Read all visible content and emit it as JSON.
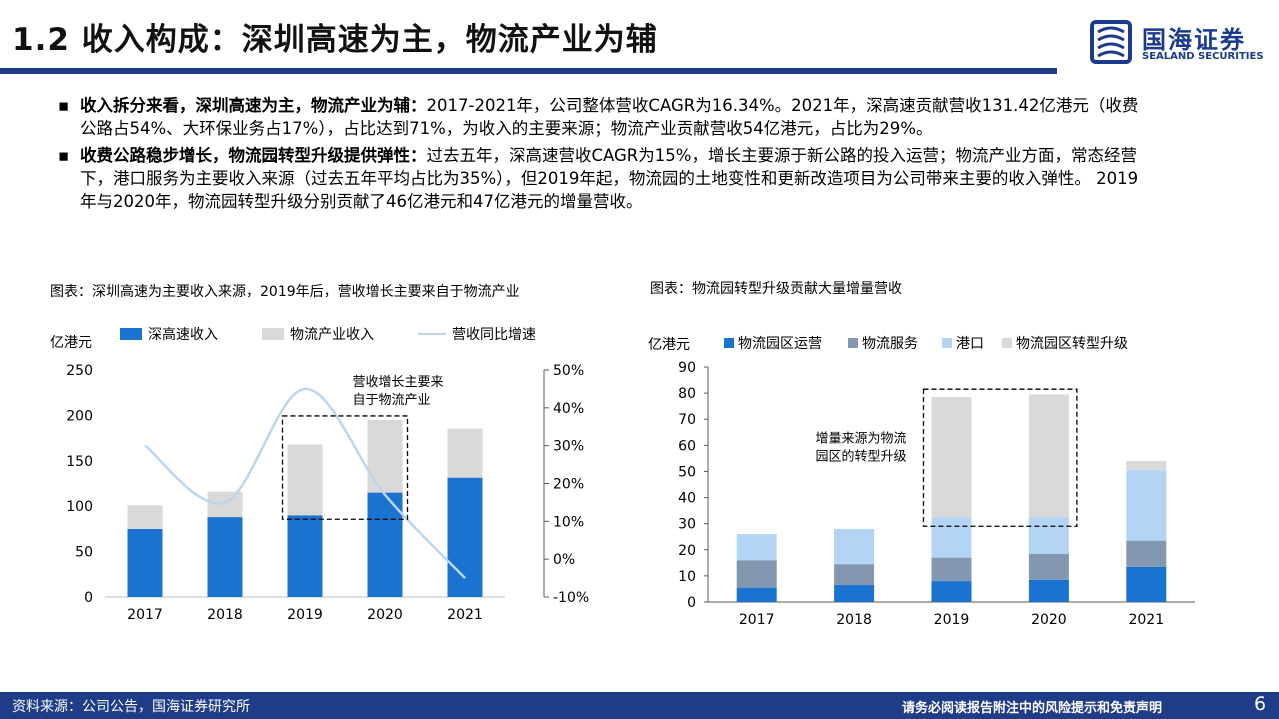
{
  "page": {
    "title": "1.2 收入构成：深圳高速为主，物流产业为辅",
    "logo_name": "国海证券",
    "logo_en": "SEALAND SECURITIES",
    "page_number": "6"
  },
  "bullets": [
    {
      "bold": "收入拆分来看，深圳高速为主，物流产业为辅：",
      "text": "2017-2021年，公司整体营收CAGR为16.34%。2021年，深高速贡献营收131.42亿港元（收费公路占54%、大环保业务占17%），占比达到71%，为收入的主要来源；物流产业贡献营收54亿港元，占比为29%。"
    },
    {
      "bold": "收费公路稳步增长，物流园转型升级提供弹性：",
      "text": "过去五年，深高速营收CAGR为15%，增长主要源于新公路的投入运营；物流产业方面，常态经营下，港口服务为主要收入来源（过去五年平均占比为35%），但2019年起，物流园的土地变性和更新改造项目为公司带来主要的收入弹性。 2019年与2020年，物流园转型升级分别贡献了46亿港元和47亿港元的增量营收。"
    }
  ],
  "footer": {
    "source": "资料来源：公司公告，国海证券研究所",
    "disclaimer": "请务必阅读报告附注中的风险提示和免责声明"
  },
  "colors": {
    "brand": "#1f3c88",
    "sz_expressway": "#1a73d1",
    "logistics": "#d9d9d9",
    "growth_line": "#bcd5ee",
    "park_ops": "#1a73d1",
    "logistics_service": "#8497b0",
    "port": "#b3d4f5",
    "park_transform": "#d9d9d9"
  },
  "chart_data": [
    {
      "type": "bar",
      "caption": "图表：深圳高速为主要收入来源，2019年后，营收增长主要来自于物流产业",
      "ylabel": "亿港元",
      "categories": [
        "2017",
        "2018",
        "2019",
        "2020",
        "2021"
      ],
      "ylim": [
        0,
        250
      ],
      "yticks": [
        "0",
        "50",
        "100",
        "150",
        "200",
        "250"
      ],
      "y2lim": [
        -10,
        50
      ],
      "y2ticks": [
        "-10%",
        "0%",
        "10%",
        "20%",
        "30%",
        "40%",
        "50%"
      ],
      "series": [
        {
          "name": "深高速收入",
          "kind": "bar",
          "values": [
            75,
            88,
            90,
            115,
            131.42
          ]
        },
        {
          "name": "物流产业收入",
          "kind": "bar",
          "values": [
            26,
            28,
            78,
            80,
            54
          ]
        },
        {
          "name": "营收同比增速",
          "kind": "line",
          "axis": "right",
          "values": [
            30,
            15,
            45,
            17,
            -5
          ]
        }
      ],
      "annotation": "营收增长主要来自于物流产业",
      "annotation_lines": [
        "营收增长主要来",
        "自于物流产业"
      ],
      "highlight_categories": [
        "2019",
        "2020"
      ],
      "legend_position": "top"
    },
    {
      "type": "bar",
      "caption": "图表：物流园转型升级贡献大量增量营收",
      "ylabel": "亿港元",
      "categories": [
        "2017",
        "2018",
        "2019",
        "2020",
        "2021"
      ],
      "ylim": [
        0,
        90
      ],
      "yticks": [
        "0",
        "10",
        "20",
        "30",
        "40",
        "50",
        "60",
        "70",
        "80",
        "90"
      ],
      "series": [
        {
          "name": "物流园区运营",
          "values": [
            5.5,
            6.5,
            8,
            8.5,
            13.5
          ]
        },
        {
          "name": "物流服务",
          "values": [
            10.5,
            8,
            9,
            10,
            10
          ]
        },
        {
          "name": "港口",
          "values": [
            10,
            13.5,
            15.5,
            14,
            27
          ]
        },
        {
          "name": "物流园区转型升级",
          "values": [
            0,
            0,
            46,
            47,
            3.5
          ]
        }
      ],
      "annotation": "增量来源为物流园区的转型升级",
      "annotation_lines": [
        "增量来源为物流",
        "园区的转型升级"
      ],
      "highlight_categories": [
        "2019",
        "2020"
      ],
      "legend_position": "top"
    }
  ]
}
